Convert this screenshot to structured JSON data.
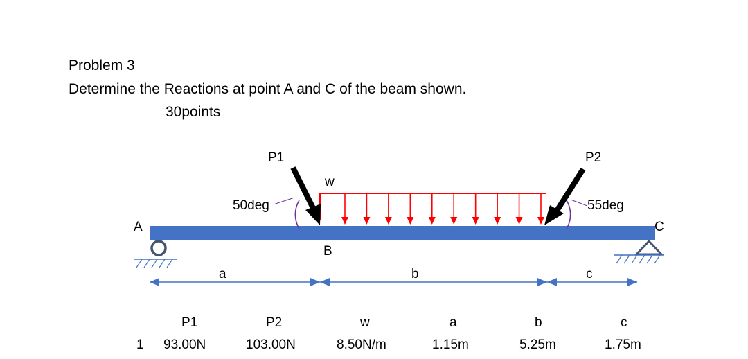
{
  "problem": {
    "title": "Problem 3",
    "question": "Determine the Reactions at point A and C of the beam shown.",
    "points": "30points"
  },
  "diagram": {
    "labels": {
      "P1": "P1",
      "P2": "P2",
      "w": "w",
      "angle1": "50deg",
      "angle2": "55deg",
      "A": "A",
      "B": "B",
      "C": "C",
      "dim_a": "a",
      "dim_b": "b",
      "dim_c": "c"
    },
    "colors": {
      "beam": "#4472c4",
      "load": "#ff0000",
      "arrow": "#000000",
      "arc": "#7030a0",
      "support": "#4472c4",
      "dimension": "#4472c4"
    },
    "supports": {
      "A": "roller",
      "C": "pin"
    },
    "distributed_load_arrows": 10
  },
  "table": {
    "headers": [
      "P1",
      "P2",
      "w",
      "a",
      "b",
      "c"
    ],
    "row": {
      "index": "1",
      "values": [
        "93.00N",
        "103.00N",
        "8.50N/m",
        "1.15m",
        "5.25m",
        "1.75m"
      ]
    }
  }
}
